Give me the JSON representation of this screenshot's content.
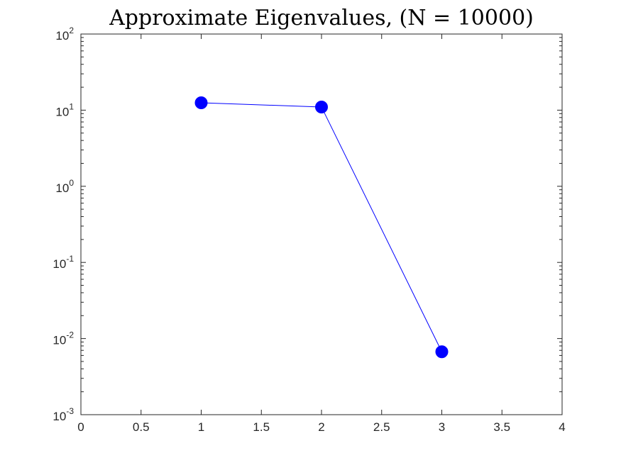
{
  "chart_data": {
    "type": "line",
    "title": "Approximate Eigenvalues, (N = 10000)",
    "xlabel": "",
    "ylabel": "",
    "xlim": [
      0,
      4
    ],
    "ylim": [
      0.001,
      100
    ],
    "yscale": "log",
    "grid": false,
    "x_ticks": [
      "0",
      "0.5",
      "1",
      "1.5",
      "2",
      "2.5",
      "3",
      "3.5",
      "4"
    ],
    "y_ticks": [
      {
        "base": "10",
        "exp": "-3"
      },
      {
        "base": "10",
        "exp": "-2"
      },
      {
        "base": "10",
        "exp": "-1"
      },
      {
        "base": "10",
        "exp": "0"
      },
      {
        "base": "10",
        "exp": "1"
      },
      {
        "base": "10",
        "exp": "2"
      }
    ],
    "series": [
      {
        "color": "#0000ff",
        "marker": "filled-circle",
        "x": [
          1,
          2,
          3
        ],
        "y": [
          12.5,
          11.0,
          0.0067
        ]
      }
    ]
  }
}
